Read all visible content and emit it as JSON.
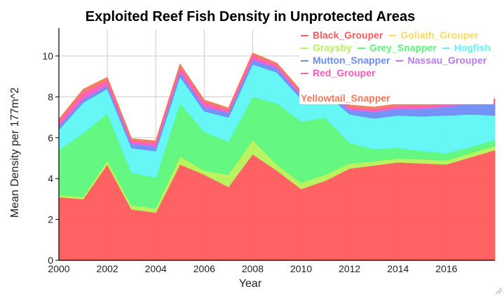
{
  "colors": {
    "background": "#ffffff",
    "grid": "#cccccc",
    "axis": "#000000"
  },
  "chart_data": {
    "type": "area",
    "title": "Exploited Reef Fish Density in Unprotected Areas",
    "xlabel": "Year",
    "ylabel": "Mean Density per 177m^2",
    "xlim": [
      2000,
      2018
    ],
    "ylim": [
      0,
      11.3
    ],
    "x_ticks": [
      "2000",
      "2002",
      "2004",
      "2006",
      "2008",
      "2010",
      "2012",
      "2014",
      "2016"
    ],
    "y_ticks": [
      "0",
      "2",
      "4",
      "6",
      "8",
      "10"
    ],
    "grid": true,
    "stacked": true,
    "legend_position": "top-right",
    "x": [
      2000,
      2001,
      2002,
      2003,
      2004,
      2005,
      2006,
      2007,
      2008,
      2009,
      2010,
      2011,
      2012,
      2013,
      2014,
      2015,
      2016,
      2017,
      2018
    ],
    "series": [
      {
        "name": "Black_Grouper",
        "color": "#ff5a5a",
        "values": [
          3.1,
          3.0,
          4.7,
          2.5,
          2.35,
          4.7,
          4.2,
          3.6,
          5.2,
          4.4,
          3.5,
          3.9,
          4.5,
          4.65,
          4.8,
          4.75,
          4.7,
          5.05,
          5.4
        ]
      },
      {
        "name": "Goliath_Grouper",
        "color": "#ffd966",
        "values": [
          0,
          0,
          0,
          0,
          0,
          0,
          0,
          0,
          0,
          0,
          0,
          0,
          0,
          0,
          0,
          0,
          0,
          0,
          0
        ]
      },
      {
        "name": "Graysby",
        "color": "#b6f25a",
        "values": [
          0.1,
          0.12,
          0.2,
          0.2,
          0.2,
          0.4,
          0.2,
          0.6,
          0.7,
          0.3,
          0.3,
          0.3,
          0.25,
          0.2,
          0.2,
          0.2,
          0.2,
          0.2,
          0.2
        ]
      },
      {
        "name": "Grey_Snapper",
        "color": "#5cf77a",
        "values": [
          2.2,
          3.1,
          2.3,
          1.6,
          1.5,
          2.6,
          1.9,
          1.6,
          2.1,
          3.0,
          3.0,
          2.8,
          1.0,
          0.6,
          0.5,
          0.4,
          0.35,
          0.3,
          0.3
        ]
      },
      {
        "name": "Hogfish",
        "color": "#5ff5f5",
        "values": [
          1.0,
          1.5,
          1.2,
          1.2,
          1.3,
          1.3,
          1.0,
          1.2,
          1.6,
          1.5,
          1.1,
          1.2,
          1.4,
          1.5,
          1.6,
          1.7,
          1.85,
          1.6,
          1.2
        ]
      },
      {
        "name": "Mutton_Snapper",
        "color": "#6e8cf5",
        "values": [
          0.15,
          0.15,
          0.15,
          0.2,
          0.2,
          0.2,
          0.2,
          0.2,
          0.2,
          0.2,
          0.15,
          0.15,
          0.2,
          0.3,
          0.3,
          0.35,
          0.4,
          0.5,
          0.55
        ]
      },
      {
        "name": "Nassau_Grouper",
        "color": "#b57cf0",
        "values": [
          0.05,
          0.05,
          0.05,
          0.05,
          0.05,
          0.05,
          0.05,
          0.05,
          0.05,
          0.05,
          0.05,
          0.05,
          0.05,
          0.05,
          0.05,
          0.05,
          0.05,
          0.05,
          0.05
        ]
      },
      {
        "name": "Red_Grouper",
        "color": "#ff5ab8",
        "values": [
          0.2,
          0.3,
          0.2,
          0.1,
          0.15,
          0.2,
          0.2,
          0.1,
          0.2,
          0.1,
          0.1,
          0.1,
          0.1,
          0.1,
          0.1,
          0.1,
          0.1,
          0.1,
          0.1
        ]
      },
      {
        "name": "Yellowtail_Snapper",
        "color": "#f27a5a",
        "values": [
          0.1,
          0.15,
          0.15,
          0.1,
          0.1,
          0.15,
          0.1,
          0.1,
          0.1,
          0.1,
          0.1,
          0.1,
          0.1,
          0.1,
          0.1,
          0.1,
          0.1,
          0.1,
          0.1
        ]
      }
    ]
  }
}
